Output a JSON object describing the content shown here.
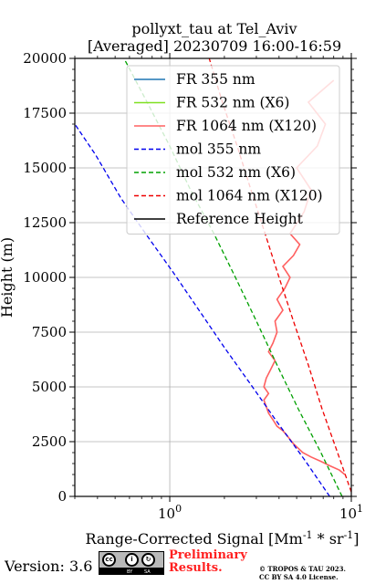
{
  "title_line1": "pollyxt_tau at Tel_Aviv",
  "title_line2": "[Averaged] 20230709 16:00-16:59",
  "footer": {
    "version": "Version: 3.6",
    "preliminary_line1": "Preliminary",
    "preliminary_line2": "Results.",
    "copyright_line1": "© TROPOS & TAU 2023.",
    "copyright_line2": "CC BY SA 4.0 License.",
    "license_badge": {
      "icons": [
        "cc-icon",
        "by-icon",
        "sa-icon"
      ],
      "labels": [
        "BY",
        "SA"
      ]
    }
  },
  "chart_data": {
    "type": "line",
    "title": "pollyxt_tau at Tel_Aviv [Averaged] 20230709 16:00-16:59",
    "xlabel": "Range-Corrected Signal [Mm^-1 * sr^-1]",
    "ylabel": "Height (m)",
    "xscale": "log",
    "xlim": [
      0.3,
      10
    ],
    "ylim": [
      0,
      20000
    ],
    "x_ticks": [
      1,
      10
    ],
    "x_tick_labels": [
      "10^0",
      "10^1"
    ],
    "y_ticks": [
      0,
      2500,
      5000,
      7500,
      10000,
      12500,
      15000,
      17500,
      20000
    ],
    "grid": true,
    "legend_position": "top-right",
    "legend": [
      "FR 355 nm",
      "FR 532 nm (X6)",
      "FR 1064 nm (X120)",
      "mol 355 nm",
      "mol 532 nm (X6)",
      "mol 1064 nm (X120)",
      "Reference Height"
    ],
    "series": [
      {
        "name": "FR 355 nm",
        "color": "#1f77b4",
        "style": "solid",
        "x": [],
        "y": []
      },
      {
        "name": "FR 532 nm (X6)",
        "color": "#7fe020",
        "style": "solid",
        "x": [],
        "y": []
      },
      {
        "name": "FR 1064 nm (X120)",
        "color": "#ff6060",
        "style": "solid",
        "x": [
          9.2,
          8.6,
          7.6,
          6.8,
          6.0,
          5.4,
          5.1,
          4.8,
          4.6,
          4.4,
          4.2,
          3.9,
          3.7,
          3.5,
          3.4,
          3.3,
          3.5,
          3.3,
          3.4,
          3.6,
          3.8,
          3.5,
          3.7,
          3.9,
          3.8,
          4.2,
          3.9,
          4.3,
          4.6,
          4.2,
          4.8,
          5.2,
          4.6,
          5.5,
          6.0,
          5.0,
          6.5,
          7.2,
          5.8,
          8.0
        ],
        "y": [
          1000,
          1200,
          1400,
          1600,
          1800,
          2000,
          2200,
          2400,
          2600,
          2800,
          3000,
          3200,
          3500,
          3800,
          4100,
          4400,
          4700,
          5000,
          5400,
          5800,
          6200,
          6600,
          7000,
          7500,
          8000,
          8500,
          9000,
          9500,
          10000,
          10500,
          11000,
          11500,
          12000,
          13000,
          14000,
          15000,
          16000,
          17000,
          18000,
          19000
        ]
      },
      {
        "name": "mol 355 nm",
        "color": "#0000ee",
        "style": "dashed",
        "x": [
          7.6,
          5.5,
          3.9,
          2.8,
          2.0,
          1.45,
          1.05,
          0.75,
          0.54,
          0.39,
          0.3
        ],
        "y": [
          0,
          1700,
          3400,
          5100,
          6800,
          8500,
          10200,
          11900,
          13600,
          15600,
          17000
        ]
      },
      {
        "name": "mol 532 nm (X6)",
        "color": "#00a000",
        "style": "dashed",
        "x": [
          8.9,
          6.8,
          5.1,
          3.9,
          3.0,
          2.3,
          1.75,
          1.3,
          1.0,
          0.75,
          0.56
        ],
        "y": [
          0,
          2000,
          4000,
          6000,
          8000,
          10000,
          12000,
          14000,
          16000,
          18000,
          20000
        ]
      },
      {
        "name": "mol 1064 nm (X120)",
        "color": "#ee0000",
        "style": "dashed",
        "x": [
          10.0,
          8.4,
          6.9,
          5.8,
          4.8,
          4.0,
          3.35,
          2.8,
          2.35,
          1.95,
          1.65
        ],
        "y": [
          200,
          2000,
          4000,
          6000,
          8000,
          10000,
          12000,
          14000,
          16000,
          18000,
          20000
        ]
      },
      {
        "name": "Reference Height",
        "color": "#000000",
        "style": "solid",
        "x": [],
        "y": []
      }
    ]
  }
}
